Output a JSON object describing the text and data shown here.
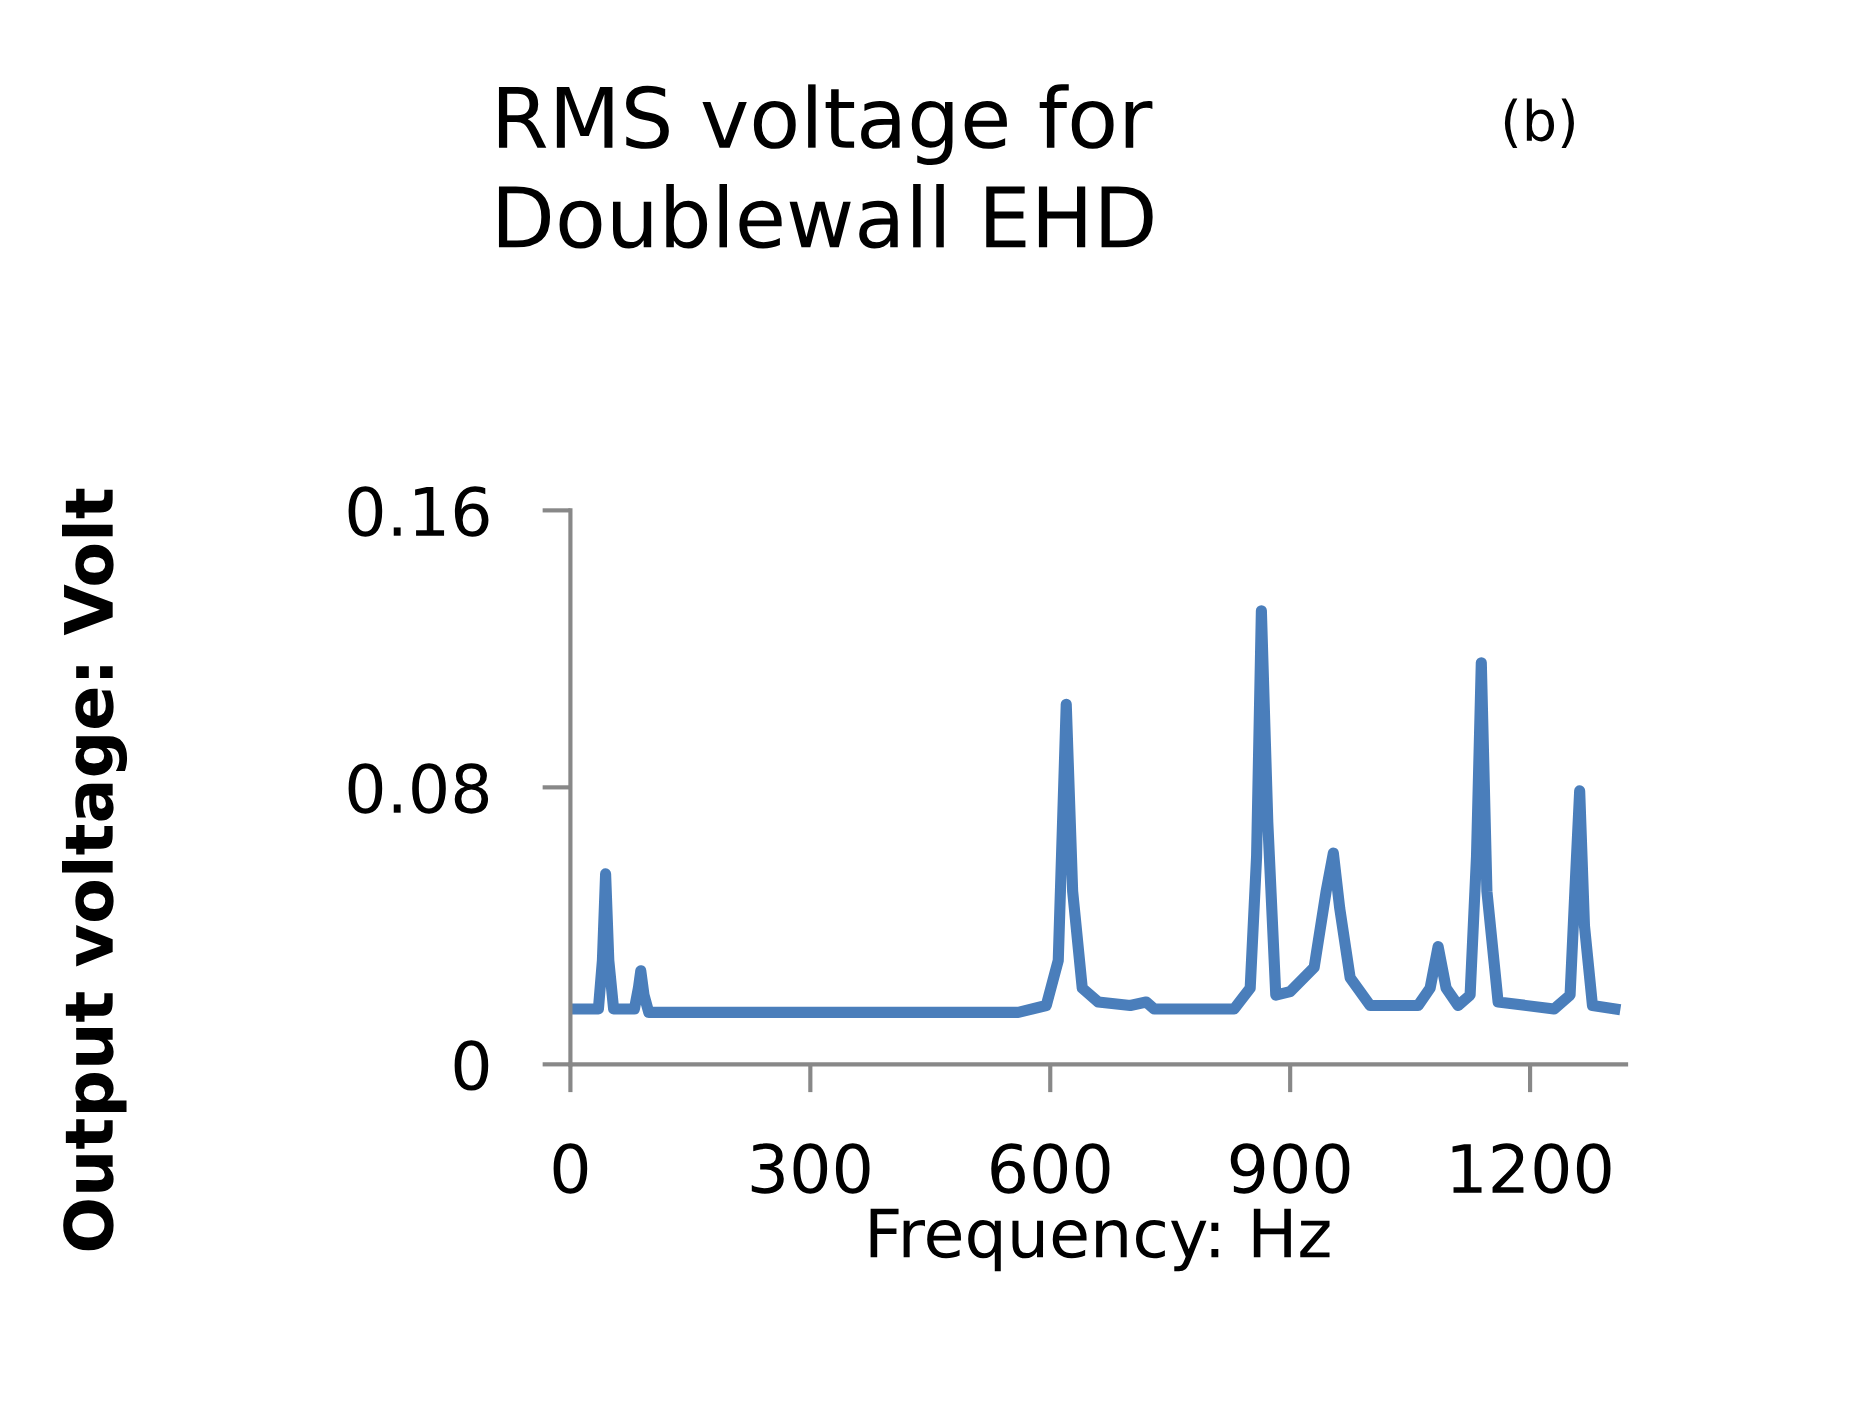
{
  "chart_data": {
    "type": "line",
    "title": "RMS voltage for\nDoublewall EHD",
    "xlabel": "Frequency: Hz",
    "ylabel": "Output voltage: Volt",
    "annotations": [
      "(b)"
    ],
    "series": [
      {
        "color": "#4a7ebb",
        "x": [
          0,
          35,
          40,
          44,
          48,
          54,
          80,
          85,
          88,
          92,
          98,
          300,
          560,
          595,
          610,
          620,
          628,
          640,
          660,
          700,
          720,
          730,
          830,
          850,
          858,
          864,
          872,
          882,
          900,
          930,
          945,
          954,
          962,
          975,
          1000,
          1060,
          1075,
          1085,
          1095,
          1110,
          1125,
          1133,
          1139,
          1146,
          1160,
          1230,
          1250,
          1256,
          1262,
          1268,
          1278,
          1306
        ],
        "values": [
          0.016,
          0.016,
          0.03,
          0.055,
          0.03,
          0.016,
          0.016,
          0.022,
          0.027,
          0.02,
          0.015,
          0.015,
          0.015,
          0.017,
          0.03,
          0.104,
          0.05,
          0.022,
          0.018,
          0.017,
          0.018,
          0.016,
          0.016,
          0.022,
          0.06,
          0.131,
          0.07,
          0.02,
          0.021,
          0.028,
          0.05,
          0.061,
          0.045,
          0.025,
          0.017,
          0.017,
          0.022,
          0.034,
          0.022,
          0.017,
          0.02,
          0.06,
          0.116,
          0.05,
          0.018,
          0.016,
          0.02,
          0.05,
          0.079,
          0.04,
          0.017,
          0.016
        ]
      }
    ],
    "xlim": [
      0,
      1320
    ],
    "xticks": [
      0,
      300,
      600,
      900,
      1200
    ],
    "ylim": [
      0,
      0.16
    ],
    "yticks": [
      0,
      0.08,
      0.16
    ],
    "grid": false,
    "legend": false,
    "marker": "none",
    "line_style": "solid"
  }
}
